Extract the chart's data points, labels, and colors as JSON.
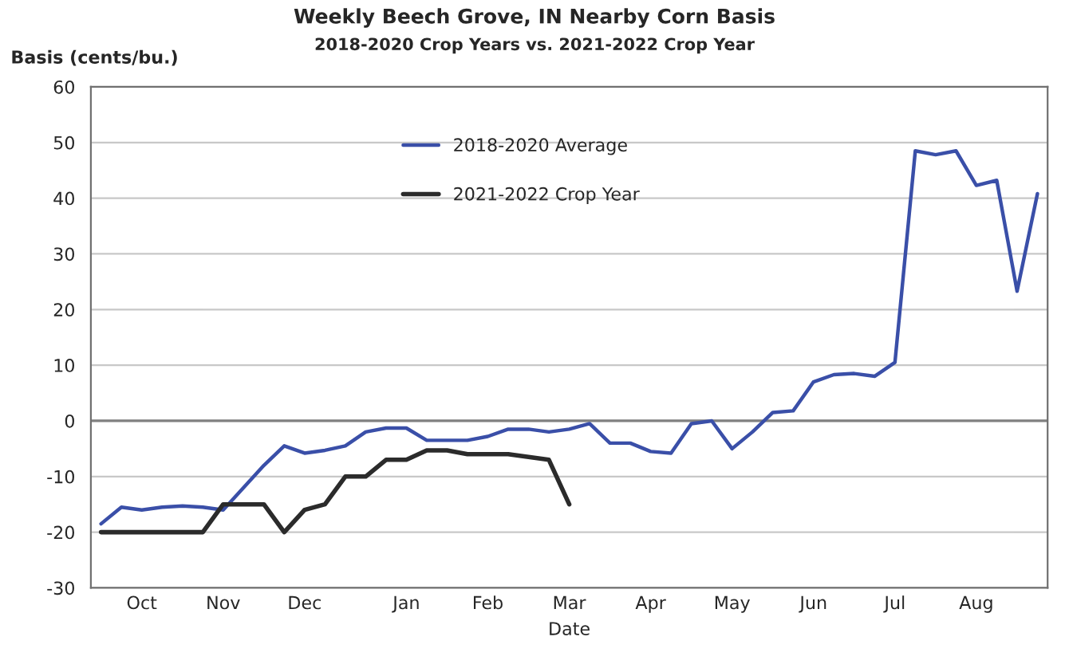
{
  "chart_data": {
    "type": "line",
    "title": "Weekly Beech Grove, IN Nearby Corn Basis",
    "subtitle": "2018-2020 Crop Years vs. 2021-2022 Crop Year",
    "xlabel": "Date",
    "ylabel": "Basis (cents/bu.)",
    "categories": [
      null,
      null,
      "Oct",
      null,
      null,
      null,
      "Nov",
      null,
      null,
      null,
      "Dec",
      null,
      null,
      null,
      null,
      "Jan",
      null,
      null,
      null,
      "Feb",
      null,
      null,
      null,
      "Mar",
      null,
      null,
      null,
      "Apr",
      null,
      null,
      null,
      "May",
      null,
      null,
      null,
      "Jun",
      null,
      null,
      null,
      "Jul",
      null,
      null,
      null,
      "Aug",
      null,
      null,
      null
    ],
    "series": [
      {
        "name": "2018-2020 Average",
        "color": "#3a4fa8",
        "values": [
          -18.5,
          -15.5,
          -16,
          -15.5,
          -15.3,
          -15.5,
          -16,
          -12,
          -8,
          -4.5,
          -5.8,
          -5.3,
          -4.5,
          -2,
          -1.3,
          -1.3,
          -3.5,
          -3.5,
          -3.5,
          -2.8,
          -1.5,
          -1.5,
          -2,
          -1.5,
          -0.5,
          -4,
          -4,
          -5.5,
          -5.8,
          -0.5,
          0,
          -5,
          -2,
          1.5,
          1.8,
          7,
          8.3,
          8.5,
          8,
          10.5,
          48.5,
          47.8,
          48.5,
          42.3,
          43.2,
          23.3,
          40.8
        ]
      },
      {
        "name": "2021-2022 Crop Year",
        "color": "#2b2b2b",
        "values": [
          -20,
          -20,
          -20,
          -20,
          -20,
          -20,
          -15,
          -15,
          -15,
          -20,
          -16,
          -15,
          -10,
          -10,
          -7,
          -7,
          -5.3,
          -5.3,
          -6,
          -6,
          -6,
          -6.5,
          -7,
          -15,
          null,
          null,
          null,
          null,
          null,
          null,
          null,
          null,
          null,
          null,
          null,
          null,
          null,
          null,
          null,
          null,
          null,
          null,
          null,
          null,
          null,
          null,
          null
        ]
      }
    ],
    "ylim": [
      -30,
      60
    ],
    "yticks": [
      -30,
      -20,
      -10,
      0,
      10,
      20,
      30,
      40,
      50,
      60
    ],
    "grid": "y",
    "legend": "top center",
    "ref_lines": [
      {
        "axis": "y",
        "value": 0,
        "label": null,
        "color": "#808080"
      }
    ]
  }
}
